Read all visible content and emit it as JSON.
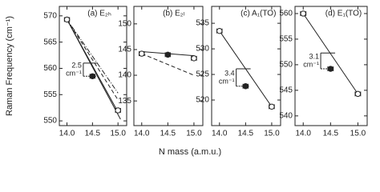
{
  "chart_data": [
    {
      "type": "scatter",
      "title": "(a) E₂ₕ",
      "ylabel": "Raman Frequency (cm⁻¹)",
      "xlim": [
        13.85,
        15.17
      ],
      "xticks": [
        {
          "value": 14,
          "label": "14.0"
        },
        {
          "value": 14.5,
          "label": "14.5"
        },
        {
          "value": 15,
          "label": "15.0"
        }
      ],
      "ylim": [
        549.1,
        571.8
      ],
      "yticks": [
        550,
        555,
        560,
        565,
        570
      ],
      "points": {
        "x": [
          14,
          14.5,
          15
        ],
        "y": [
          569.3,
          558.5,
          552
        ],
        "xerr": [
          0.05,
          0.05,
          0.05
        ],
        "filled": [
          false,
          true,
          false
        ]
      },
      "lines": [
        {
          "style": "solid",
          "x": [
            14,
            15.05
          ],
          "y": [
            569.3,
            550.3
          ]
        },
        {
          "style": "solid",
          "x": [
            14,
            15
          ],
          "y": [
            569.3,
            551.7
          ]
        },
        {
          "style": "dashed",
          "x": [
            14,
            15
          ],
          "y": [
            569.3,
            554
          ]
        },
        {
          "style": "dashdot",
          "x": [
            14,
            15
          ],
          "y": [
            569.3,
            555.3
          ]
        }
      ],
      "annotations": [
        {
          "x": 14.32,
          "from": 558.5,
          "to": 561,
          "label": [
            "2.5",
            "cm⁻¹"
          ]
        }
      ]
    },
    {
      "type": "scatter",
      "title": "(b) E₂ₗ",
      "xlim": [
        13.85,
        15.17
      ],
      "xticks": [
        {
          "value": 14,
          "label": "14.0"
        },
        {
          "value": 14.5,
          "label": "14.5"
        },
        {
          "value": 15,
          "label": "15.0"
        }
      ],
      "ylim": [
        130.2,
        153.4
      ],
      "yticks": [
        135,
        140,
        145,
        150
      ],
      "points": {
        "x": [
          14,
          14.5,
          15
        ],
        "y": [
          144.2,
          144,
          143.3
        ],
        "xerr": [
          0.05,
          0.05,
          0.05
        ],
        "filled": [
          false,
          true,
          false
        ]
      },
      "lines": [
        {
          "style": "solid",
          "x": [
            14,
            15
          ],
          "y": [
            144.6,
            143.8
          ]
        },
        {
          "style": "dashed",
          "x": [
            14,
            15
          ],
          "y": [
            144.2,
            140
          ]
        }
      ],
      "annotations": []
    },
    {
      "type": "scatter",
      "title": "(c) A₁(TO)",
      "xlim": [
        13.85,
        15.17
      ],
      "xticks": [
        {
          "value": 14,
          "label": "14.0"
        },
        {
          "value": 14.5,
          "label": "14.5"
        },
        {
          "value": 15,
          "label": "15.0"
        }
      ],
      "ylim": [
        515,
        538.3
      ],
      "yticks": [
        520,
        525,
        530,
        535
      ],
      "points": {
        "x": [
          14,
          14.5,
          15
        ],
        "y": [
          533.5,
          522.7,
          518.7
        ],
        "xerr": [
          0.05,
          0.05,
          0.05
        ],
        "filled": [
          false,
          true,
          false
        ]
      },
      "lines": [
        {
          "style": "solid",
          "x": [
            14,
            15
          ],
          "y": [
            533.5,
            518.7
          ]
        }
      ],
      "annotations": [
        {
          "x": 14.32,
          "from": 522.7,
          "to": 526.1,
          "label": [
            "3.4",
            "cm⁻¹"
          ]
        }
      ]
    },
    {
      "type": "scatter",
      "title": "(d) E₁(TO)",
      "xlim": [
        13.85,
        15.17
      ],
      "xticks": [
        {
          "value": 14,
          "label": "14.0"
        },
        {
          "value": 14.5,
          "label": "14.5"
        },
        {
          "value": 15,
          "label": "15.0"
        }
      ],
      "ylim": [
        538.1,
        561.4
      ],
      "yticks": [
        540,
        545,
        550,
        555,
        560
      ],
      "points": {
        "x": [
          14,
          14.5,
          15
        ],
        "y": [
          560,
          549.2,
          544.3
        ],
        "xerr": [
          0.05,
          0.05,
          0.05
        ],
        "filled": [
          false,
          true,
          false
        ]
      },
      "lines": [
        {
          "style": "solid",
          "x": [
            14,
            15
          ],
          "y": [
            560,
            544.3
          ]
        }
      ],
      "annotations": [
        {
          "x": 14.32,
          "from": 549.2,
          "to": 552.3,
          "label": [
            "3.1",
            "cm⁻¹"
          ]
        }
      ]
    }
  ],
  "xlabel": "N mass (a.m.u.)"
}
